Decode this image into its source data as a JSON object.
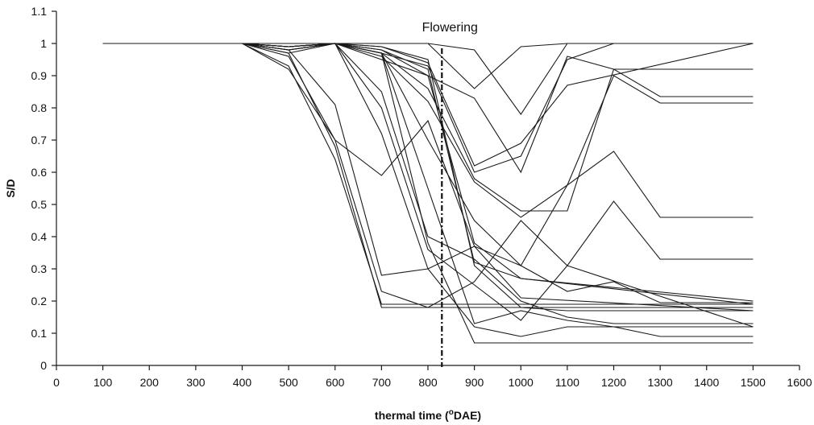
{
  "chart_data": {
    "type": "line",
    "title": "",
    "xlabel": "thermal time (",
    "xlabel_sup": "o",
    "xlabel_tail": "DAE)",
    "ylabel": "S/D",
    "xlim": [
      0,
      1600
    ],
    "ylim": [
      0,
      1.1
    ],
    "x_ticks": [
      0,
      100,
      200,
      300,
      400,
      500,
      600,
      700,
      800,
      900,
      1000,
      1100,
      1200,
      1300,
      1400,
      1500,
      1600
    ],
    "y_ticks": [
      0,
      0.1,
      0.2,
      0.3,
      0.4,
      0.5,
      0.6,
      0.7,
      0.8,
      0.9,
      1,
      1.1
    ],
    "grid": false,
    "legend": "none",
    "annotations": [
      {
        "text": "Flowering",
        "x": 830,
        "y": 1.05
      }
    ],
    "reference_lines": [
      {
        "orientation": "vertical",
        "x": 830,
        "style": "dash-dot"
      }
    ],
    "series": [
      {
        "x": [
          100,
          400,
          500,
          600,
          700,
          800,
          900,
          1000,
          1100,
          1500
        ],
        "y": [
          1,
          1,
          1,
          1,
          1,
          1,
          0.98,
          0.78,
          1,
          1
        ]
      },
      {
        "x": [
          100,
          400,
          500,
          600,
          700,
          800,
          900,
          1000,
          1100,
          1500
        ],
        "y": [
          1,
          1,
          1,
          1,
          1,
          1,
          0.86,
          0.99,
          1,
          1
        ]
      },
      {
        "x": [
          100,
          400,
          500,
          600,
          700,
          800,
          900,
          1000,
          1100,
          1500
        ],
        "y": [
          1,
          1,
          0.97,
          1,
          0.99,
          0.94,
          0.62,
          0.69,
          0.87,
          1
        ]
      },
      {
        "x": [
          100,
          400,
          500,
          600,
          700,
          800,
          900,
          1000,
          1100,
          1200,
          1300,
          1500
        ],
        "y": [
          1,
          1,
          0.98,
          1,
          0.97,
          0.93,
          0.6,
          0.65,
          0.95,
          1,
          1,
          1
        ]
      },
      {
        "x": [
          100,
          400,
          500,
          600,
          700,
          800,
          900,
          1000,
          1100,
          1200,
          1500
        ],
        "y": [
          1,
          1,
          1,
          1,
          0.97,
          0.86,
          0.58,
          0.48,
          0.48,
          0.92,
          0.92
        ]
      },
      {
        "x": [
          100,
          400,
          500,
          600,
          700,
          800,
          900,
          1000,
          1100,
          1200,
          1300,
          1500
        ],
        "y": [
          1,
          1,
          0.98,
          1,
          0.95,
          0.9,
          0.83,
          0.6,
          0.96,
          0.92,
          0.835,
          0.835
        ]
      },
      {
        "x": [
          100,
          400,
          500,
          600,
          700,
          800,
          900,
          1000,
          1100,
          1200,
          1300,
          1500
        ],
        "y": [
          1,
          1,
          0.99,
          1,
          0.96,
          0.82,
          0.57,
          0.46,
          0.56,
          0.9,
          0.815,
          0.815
        ]
      },
      {
        "x": [
          100,
          400,
          500,
          600,
          700,
          800,
          900,
          1000,
          1100,
          1200,
          1300,
          1500
        ],
        "y": [
          1,
          1,
          0.96,
          0.7,
          0.59,
          0.76,
          0.37,
          0.31,
          0.56,
          0.665,
          0.46,
          0.46
        ]
      },
      {
        "x": [
          100,
          400,
          500,
          600,
          700,
          800,
          900,
          1000,
          1100,
          1200,
          1300,
          1500
        ],
        "y": [
          1,
          1,
          0.92,
          0.7,
          0.23,
          0.18,
          0.26,
          0.45,
          0.31,
          0.51,
          0.33,
          0.33
        ]
      },
      {
        "x": [
          100,
          400,
          500,
          600,
          700,
          800,
          900,
          1000,
          1100,
          1200,
          1300,
          1500
        ],
        "y": [
          1,
          1,
          0.98,
          1,
          0.97,
          0.7,
          0.45,
          0.31,
          0.23,
          0.26,
          0.195,
          0.195
        ]
      },
      {
        "x": [
          100,
          400,
          500,
          600,
          700,
          1500
        ],
        "y": [
          1,
          1,
          0.93,
          0.64,
          0.19,
          0.19
        ]
      },
      {
        "x": [
          100,
          400,
          500,
          600,
          700,
          800,
          1500
        ],
        "y": [
          1,
          1,
          0.97,
          0.68,
          0.18,
          0.18,
          0.18
        ]
      },
      {
        "x": [
          100,
          400,
          500,
          600,
          700,
          800,
          900,
          1000,
          1500
        ],
        "y": [
          1,
          1,
          0.98,
          0.81,
          0.28,
          0.3,
          0.37,
          0.21,
          0.17
        ]
      },
      {
        "x": [
          100,
          400,
          500,
          600,
          700,
          800,
          900,
          1000,
          1100,
          1200,
          1300,
          1500
        ],
        "y": [
          1,
          1,
          0.98,
          1,
          0.85,
          0.4,
          0.33,
          0.2,
          0.15,
          0.13,
          0.13,
          0.13
        ]
      },
      {
        "x": [
          100,
          400,
          500,
          600,
          700,
          800,
          900,
          1000,
          1100,
          1500
        ],
        "y": [
          1,
          1,
          0.99,
          1,
          0.8,
          0.36,
          0.25,
          0.14,
          0.31,
          0.12
        ]
      },
      {
        "x": [
          100,
          400,
          500,
          600,
          700,
          800,
          900,
          1000,
          1100,
          1500
        ],
        "y": [
          1,
          1,
          0.99,
          1,
          0.72,
          0.3,
          0.12,
          0.09,
          0.12,
          0.12
        ]
      },
      {
        "x": [
          100,
          400,
          500,
          600,
          700,
          800,
          900,
          1000,
          1100,
          1200,
          1300,
          1500
        ],
        "y": [
          1,
          1,
          0.99,
          1,
          0.97,
          0.55,
          0.13,
          0.17,
          0.14,
          0.12,
          0.09,
          0.09
        ]
      },
      {
        "x": [
          100,
          400,
          500,
          600,
          700,
          800,
          900,
          1000,
          1500
        ],
        "y": [
          1,
          1,
          0.99,
          1,
          0.97,
          0.38,
          0.07,
          0.07,
          0.07
        ]
      },
      {
        "x": [
          100,
          400,
          500,
          600,
          700,
          800,
          900,
          1000,
          1500
        ],
        "y": [
          1,
          1,
          0.99,
          1,
          0.98,
          0.9,
          0.38,
          0.27,
          0.2
        ]
      },
      {
        "x": [
          100,
          400,
          500,
          600,
          700,
          800,
          900,
          1000,
          1500
        ],
        "y": [
          1,
          1,
          0.99,
          1,
          0.98,
          0.92,
          0.32,
          0.27,
          0.19
        ]
      },
      {
        "x": [
          100,
          400,
          500,
          600,
          700,
          800,
          900,
          1000,
          1100,
          1500
        ],
        "y": [
          1,
          1,
          0.99,
          1,
          0.99,
          0.95,
          0.31,
          0.18,
          0.17,
          0.17
        ]
      }
    ]
  }
}
